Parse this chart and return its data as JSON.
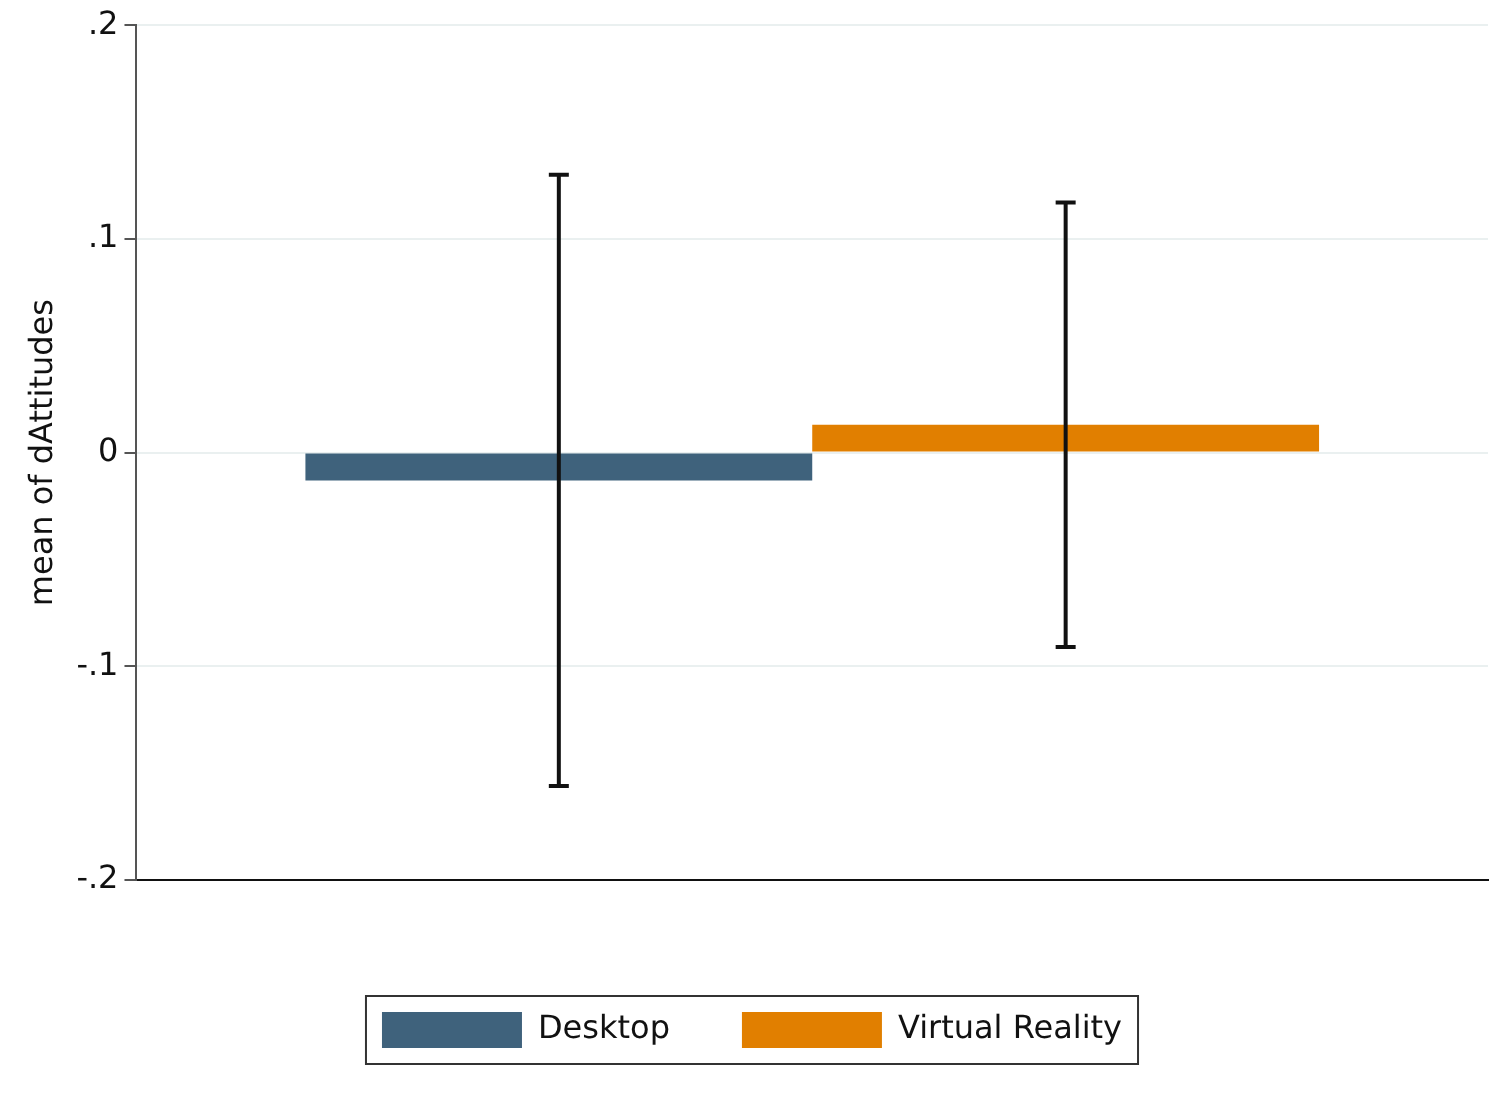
{
  "chart_data": {
    "type": "bar",
    "ylabel": "mean of dAttitudes",
    "categories": [
      null
    ],
    "series": [
      {
        "name": "Desktop",
        "color": "#3f627c",
        "values": [
          -0.013
        ],
        "errors": [
          0.143
        ]
      },
      {
        "name": "Virtual Reality",
        "color": "#e17f00",
        "values": [
          0.013
        ],
        "errors": [
          0.104
        ]
      }
    ],
    "ylim": [
      -0.2,
      0.2
    ],
    "yticks": [
      {
        "value": -0.2,
        "label": "-.2"
      },
      {
        "value": -0.1,
        "label": "-.1"
      },
      {
        "value": 0,
        "label": "0"
      },
      {
        "value": 0.1,
        "label": ".1"
      },
      {
        "value": 0.2,
        "label": ".2"
      }
    ],
    "grid": "y",
    "legend": "bottom",
    "tick_labels": "y"
  }
}
